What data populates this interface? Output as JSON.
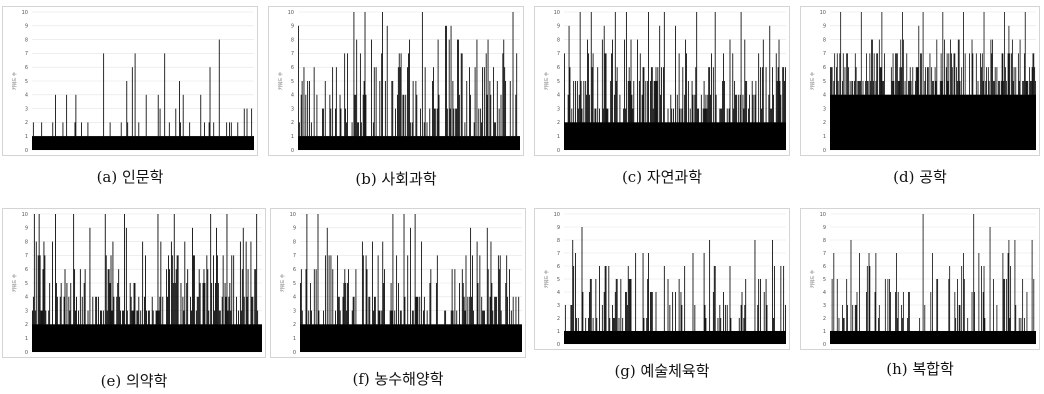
{
  "figure": {
    "panels": [
      {
        "id": "a",
        "caption": "(a) 인문학"
      },
      {
        "id": "b",
        "caption": "(b) 사회과학"
      },
      {
        "id": "c",
        "caption": "(c) 자연과학"
      },
      {
        "id": "d",
        "caption": "(d) 공학"
      },
      {
        "id": "e",
        "caption": "(e) 의약학"
      },
      {
        "id": "f",
        "caption": "(f) 농수해양학"
      },
      {
        "id": "g",
        "caption": "(g) 예술체육학"
      },
      {
        "id": "h",
        "caption": "(h) 복합학"
      }
    ]
  },
  "chart_data": [
    {
      "id": "a",
      "type": "bar",
      "title": "(a) 인문학",
      "ylabel": "키워드 수",
      "ylim": [
        0,
        10
      ],
      "yticks": [
        0,
        1,
        2,
        3,
        4,
        5,
        6,
        7,
        8,
        9,
        10
      ],
      "grid": true,
      "bar_count": 240,
      "base": 1,
      "spike_density": 0.1,
      "spikes": [
        [
          0.04,
          2
        ],
        [
          0.09,
          2
        ],
        [
          0.14,
          2
        ],
        [
          0.25,
          2
        ],
        [
          0.35,
          2
        ],
        [
          0.4,
          2
        ],
        [
          0.43,
          2
        ],
        [
          0.48,
          2
        ],
        [
          0.57,
          4
        ],
        [
          0.6,
          3
        ],
        [
          0.62,
          2
        ],
        [
          0.65,
          3
        ],
        [
          0.67,
          2
        ],
        [
          0.71,
          2
        ],
        [
          0.78,
          2
        ],
        [
          0.8,
          2
        ],
        [
          0.82,
          2
        ],
        [
          0.88,
          2
        ],
        [
          0.9,
          2
        ],
        [
          0.93,
          2
        ],
        [
          0.97,
          3
        ],
        [
          0.99,
          3
        ]
      ]
    },
    {
      "id": "b",
      "type": "bar",
      "title": "(b) 사회과학",
      "ylabel": "키워드 수",
      "ylim": [
        0,
        10
      ],
      "yticks": [
        0,
        1,
        2,
        3,
        4,
        5,
        6,
        7,
        8,
        9,
        10
      ],
      "grid": true,
      "bar_count": 240,
      "base": 1,
      "spike_density": 0.55,
      "spikes": [
        [
          0.05,
          5
        ],
        [
          0.12,
          5
        ],
        [
          0.17,
          6
        ],
        [
          0.22,
          7
        ],
        [
          0.25,
          10
        ],
        [
          0.3,
          10
        ],
        [
          0.33,
          8
        ],
        [
          0.35,
          6
        ],
        [
          0.38,
          10
        ],
        [
          0.4,
          9
        ],
        [
          0.45,
          6
        ],
        [
          0.5,
          8
        ],
        [
          0.56,
          10
        ],
        [
          0.63,
          8
        ],
        [
          0.67,
          9
        ],
        [
          0.74,
          7
        ],
        [
          0.8,
          6
        ],
        [
          0.85,
          7
        ],
        [
          0.9,
          5
        ],
        [
          0.97,
          10
        ]
      ]
    },
    {
      "id": "c",
      "type": "bar",
      "title": "(c) 자연과학",
      "ylabel": "키워드 수",
      "ylim": [
        0,
        10
      ],
      "yticks": [
        0,
        1,
        2,
        3,
        4,
        5,
        6,
        7,
        8,
        9,
        10
      ],
      "grid": true,
      "bar_count": 240,
      "base": 2,
      "spike_density": 0.75,
      "spikes": [
        [
          0.07,
          10
        ],
        [
          0.12,
          10
        ],
        [
          0.18,
          9
        ],
        [
          0.23,
          10
        ],
        [
          0.28,
          10
        ],
        [
          0.33,
          8
        ],
        [
          0.38,
          10
        ],
        [
          0.45,
          10
        ],
        [
          0.5,
          9
        ],
        [
          0.55,
          7
        ],
        [
          0.6,
          10
        ],
        [
          0.68,
          10
        ],
        [
          0.75,
          8
        ],
        [
          0.8,
          10
        ],
        [
          0.88,
          7
        ],
        [
          0.93,
          9
        ],
        [
          0.99,
          6
        ]
      ]
    },
    {
      "id": "d",
      "type": "bar",
      "title": "(d) 공학",
      "ylabel": "키워드 수",
      "ylim": [
        0,
        10
      ],
      "yticks": [
        0,
        1,
        2,
        3,
        4,
        5,
        6,
        7,
        8,
        9,
        10
      ],
      "grid": true,
      "bar_count": 240,
      "base": 4,
      "spike_density": 0.95,
      "spikes": [
        [
          0.05,
          10
        ],
        [
          0.15,
          10
        ],
        [
          0.25,
          10
        ],
        [
          0.35,
          10
        ],
        [
          0.45,
          10
        ],
        [
          0.55,
          10
        ],
        [
          0.65,
          10
        ],
        [
          0.75,
          10
        ],
        [
          0.85,
          10
        ],
        [
          0.95,
          10
        ]
      ]
    },
    {
      "id": "e",
      "type": "bar",
      "title": "(e) 의약학",
      "ylabel": "키워드 수",
      "ylim": [
        0,
        10
      ],
      "yticks": [
        0,
        1,
        2,
        3,
        4,
        5,
        6,
        7,
        8,
        9,
        10
      ],
      "grid": true,
      "bar_count": 240,
      "base": 2,
      "spike_density": 0.85,
      "spikes": [
        [
          0.01,
          10
        ],
        [
          0.03,
          10
        ],
        [
          0.05,
          8
        ],
        [
          0.1,
          10
        ],
        [
          0.18,
          10
        ],
        [
          0.25,
          9
        ],
        [
          0.32,
          10
        ],
        [
          0.4,
          10
        ],
        [
          0.48,
          8
        ],
        [
          0.55,
          10
        ],
        [
          0.62,
          10
        ],
        [
          0.7,
          9
        ],
        [
          0.78,
          10
        ],
        [
          0.85,
          10
        ],
        [
          0.92,
          9
        ],
        [
          0.98,
          10
        ]
      ]
    },
    {
      "id": "f",
      "type": "bar",
      "title": "(f) 농수해양학",
      "ylabel": "키워드 수",
      "ylim": [
        0,
        10
      ],
      "yticks": [
        0,
        1,
        2,
        3,
        4,
        5,
        6,
        7,
        8,
        9,
        10
      ],
      "grid": true,
      "bar_count": 240,
      "base": 2,
      "spike_density": 0.65,
      "spikes": [
        [
          0.03,
          10
        ],
        [
          0.08,
          10
        ],
        [
          0.12,
          9
        ],
        [
          0.2,
          6
        ],
        [
          0.28,
          8
        ],
        [
          0.35,
          7
        ],
        [
          0.42,
          10
        ],
        [
          0.47,
          10
        ],
        [
          0.52,
          10
        ],
        [
          0.55,
          8
        ],
        [
          0.62,
          7
        ],
        [
          0.7,
          6
        ],
        [
          0.78,
          7
        ],
        [
          0.85,
          6
        ],
        [
          0.93,
          5
        ]
      ]
    },
    {
      "id": "g",
      "type": "bar",
      "title": "(g) 예술체육학",
      "ylabel": "키워드 수",
      "ylim": [
        0,
        10
      ],
      "yticks": [
        0,
        1,
        2,
        3,
        4,
        5,
        6,
        7,
        8,
        9,
        10
      ],
      "grid": true,
      "bar_count": 240,
      "base": 1,
      "spike_density": 0.5,
      "spikes": [
        [
          0.05,
          7
        ],
        [
          0.12,
          5
        ],
        [
          0.2,
          6
        ],
        [
          0.3,
          5
        ],
        [
          0.38,
          7
        ],
        [
          0.45,
          6
        ],
        [
          0.52,
          5
        ],
        [
          0.58,
          7
        ],
        [
          0.63,
          7
        ],
        [
          0.68,
          6
        ],
        [
          0.75,
          6
        ],
        [
          0.82,
          5
        ],
        [
          0.88,
          5
        ],
        [
          0.95,
          5
        ]
      ]
    },
    {
      "id": "h",
      "type": "bar",
      "title": "(h) 복합학",
      "ylabel": "키워드 수",
      "ylim": [
        0,
        10
      ],
      "yticks": [
        0,
        1,
        2,
        3,
        4,
        5,
        6,
        7,
        8,
        9,
        10
      ],
      "grid": true,
      "bar_count": 240,
      "base": 1,
      "spike_density": 0.35,
      "spikes": [
        [
          0.12,
          3
        ],
        [
          0.18,
          5
        ],
        [
          0.22,
          6
        ],
        [
          0.28,
          5
        ],
        [
          0.33,
          4
        ],
        [
          0.38,
          4
        ],
        [
          0.45,
          10
        ],
        [
          0.52,
          5
        ],
        [
          0.58,
          6
        ],
        [
          0.65,
          7
        ],
        [
          0.7,
          10
        ],
        [
          0.75,
          6
        ],
        [
          0.85,
          3
        ],
        [
          0.92,
          2
        ]
      ]
    }
  ]
}
